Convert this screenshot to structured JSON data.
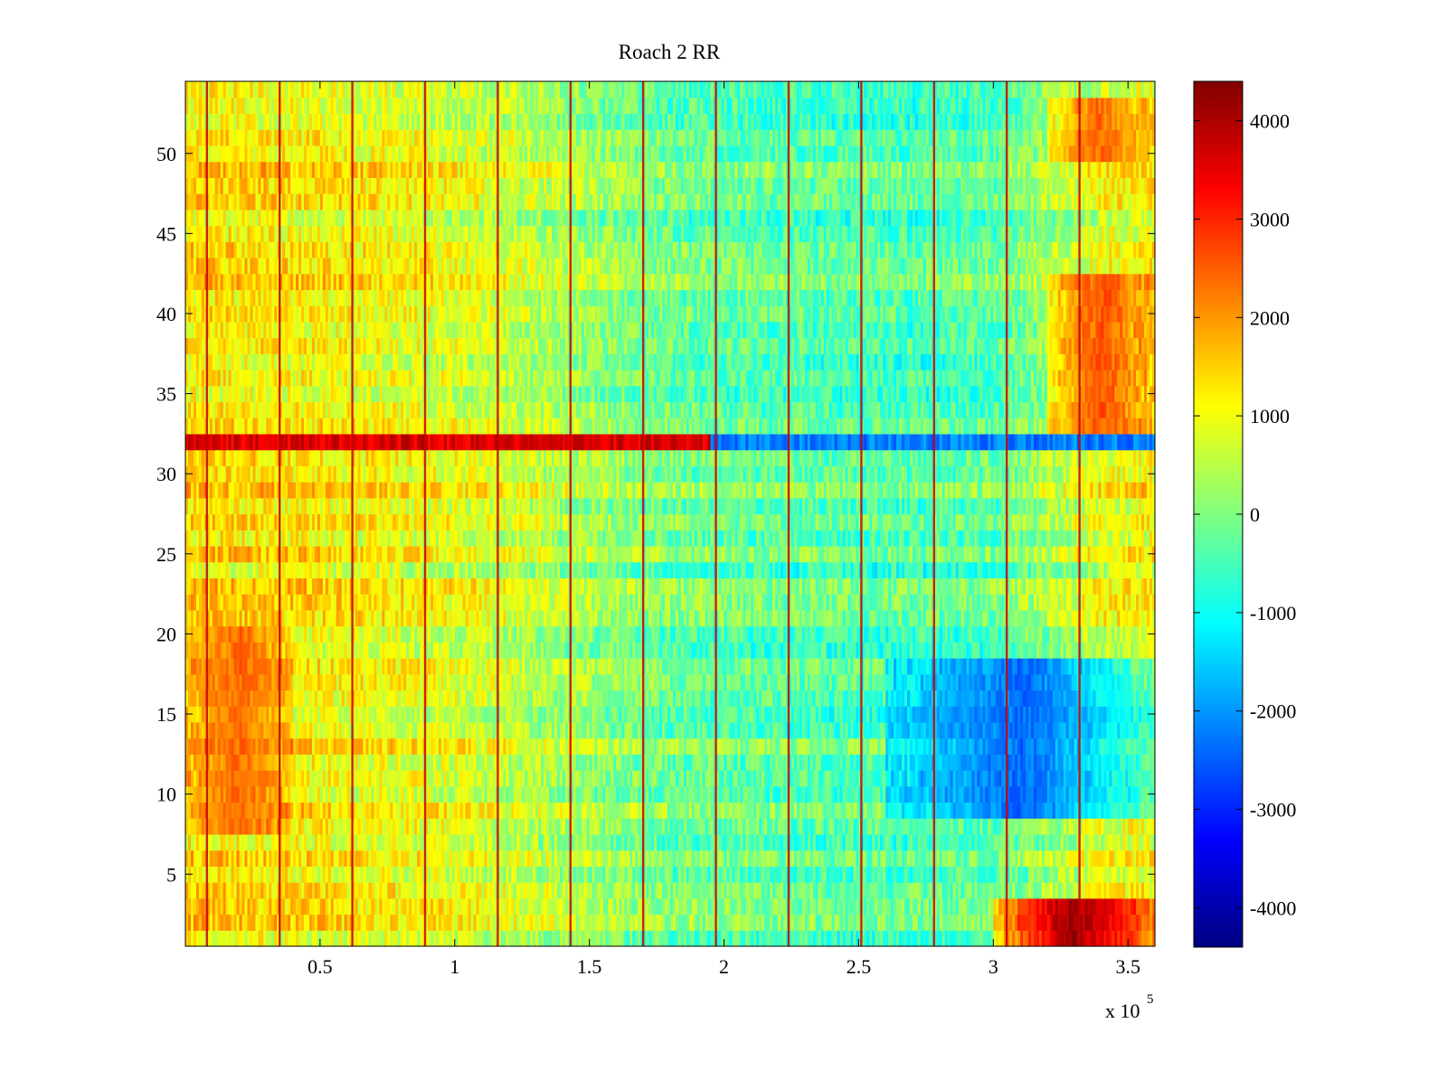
{
  "chart_data": {
    "type": "heatmap",
    "title": "Roach 2 RR",
    "xlabel": "",
    "ylabel": "",
    "x_exponent_label": "x 10",
    "x_exponent_power": "5",
    "xlim": [
      0,
      3.6
    ],
    "ylim": [
      0.5,
      54.5
    ],
    "x_ticks": [
      0.5,
      1,
      1.5,
      2,
      2.5,
      3,
      3.5
    ],
    "x_tick_labels": [
      "0.5",
      "1",
      "1.5",
      "2",
      "2.5",
      "3",
      "3.5"
    ],
    "y_ticks": [
      5,
      10,
      15,
      20,
      25,
      30,
      35,
      40,
      45,
      50
    ],
    "y_tick_labels": [
      "5",
      "10",
      "15",
      "20",
      "25",
      "30",
      "35",
      "40",
      "45",
      "50"
    ],
    "rows": 54,
    "columns": 360,
    "colormap": "jet",
    "colorbar": {
      "range": [
        -4400,
        4400
      ],
      "ticks": [
        4000,
        3000,
        2000,
        1000,
        0,
        -1000,
        -2000,
        -3000,
        -4000
      ],
      "tick_labels": [
        "4000",
        "3000",
        "2000",
        "1000",
        "0",
        "-1000",
        "-2000",
        "-3000",
        "-4000"
      ]
    },
    "baseline_profile_by_x": [
      [
        0.0,
        1400
      ],
      [
        0.3,
        1300
      ],
      [
        0.6,
        1150
      ],
      [
        0.9,
        1000
      ],
      [
        1.2,
        700
      ],
      [
        1.5,
        300
      ],
      [
        1.8,
        -100
      ],
      [
        2.1,
        -200
      ],
      [
        2.4,
        -300
      ],
      [
        2.7,
        -350
      ],
      [
        3.0,
        -250
      ],
      [
        3.2,
        300
      ],
      [
        3.4,
        900
      ],
      [
        3.6,
        1100
      ]
    ],
    "stripe_x_positions": [
      0.08,
      0.35,
      0.62,
      0.89,
      1.16,
      1.43,
      1.7,
      1.97,
      2.24,
      2.51,
      2.78,
      3.05,
      3.32
    ],
    "stripe_intensity": 3800,
    "features": [
      {
        "label": "row 32 band",
        "rows": [
          32,
          32
        ],
        "value_left": 3600,
        "value_right": -2200,
        "transition_x": 1.95
      },
      {
        "label": "lower right trough",
        "rows": [
          9,
          18
        ],
        "x_range": [
          2.6,
          3.6
        ],
        "value": -2400
      },
      {
        "label": "upper right peak",
        "rows": [
          33,
          42
        ],
        "x_range": [
          3.2,
          3.6
        ],
        "value": 2600
      },
      {
        "label": "top right peak",
        "rows": [
          50,
          53
        ],
        "x_range": [
          3.2,
          3.6
        ],
        "value": 2400
      },
      {
        "label": "bottom right peak",
        "rows": [
          1,
          3
        ],
        "x_range": [
          3.0,
          3.6
        ],
        "value": 4200
      },
      {
        "label": "lower left peak",
        "rows": [
          8,
          20
        ],
        "x_range": [
          0.0,
          0.4
        ],
        "value": 2400
      }
    ]
  }
}
